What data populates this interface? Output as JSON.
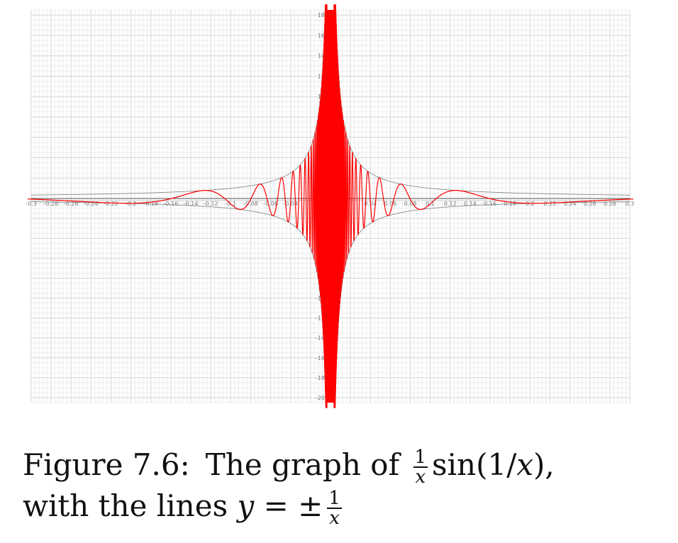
{
  "chart_data": {
    "type": "line",
    "functions": [
      "sin(1/x)/x",
      "1/x",
      "-1/x"
    ],
    "series_colors": [
      "#ff0000",
      "#808080",
      "#808080"
    ],
    "xlim": [
      -0.3,
      0.3
    ],
    "ylim": [
      -200,
      180
    ],
    "x_ticks": [
      "-0.3",
      "-0.28",
      "-0.26",
      "-0.24",
      "-0.22",
      "-0.2",
      "-0.18",
      "-0.16",
      "-0.14",
      "-0.12",
      "-0.1",
      "-0.08",
      "-0.06",
      "-0.04",
      "0.04",
      "0.06",
      "0.08",
      "0.1",
      "0.12",
      "0.14",
      "0.16",
      "0.18",
      "0.2",
      "0.22",
      "0.24",
      "0.26",
      "0.28",
      "0.3"
    ],
    "y_ticks": [
      "180",
      "160",
      "140",
      "120",
      "100",
      "-100",
      "-120",
      "-140",
      "-160",
      "-180",
      "-200"
    ],
    "grid": true,
    "legend": "none"
  },
  "caption": {
    "label": "Figure 7.6:",
    "text1": "The graph of",
    "frac_num": "1",
    "frac_den": "x",
    "func": "sin(1/",
    "func_var": "x",
    "func_end": "),",
    "line2_text": "with the lines",
    "line2_var": "y",
    "line2_eq": "= ±"
  }
}
